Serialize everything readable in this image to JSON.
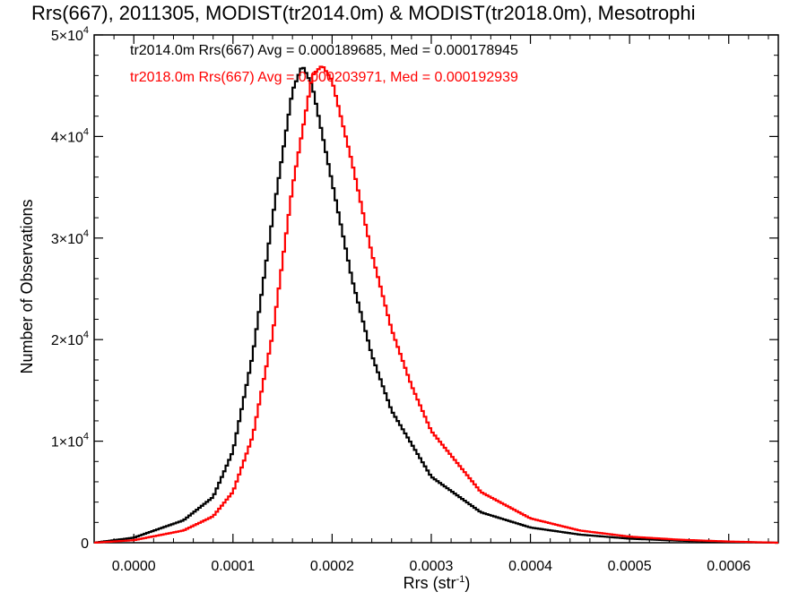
{
  "chart_data": {
    "type": "line",
    "title": "Rrs(667), 2011305, MODIST(tr2014.0m) & MODIST(tr2018.0m), Mesotrophi",
    "xlabel_main": "Rrs (str",
    "xlabel_exp": "-1",
    "xlabel_tail": ")",
    "ylabel": "Number of Observations",
    "xlim": [
      -4e-05,
      0.00065
    ],
    "ylim": [
      0,
      50000
    ],
    "x_ticks": [
      0.0,
      0.0001,
      0.0002,
      0.0003,
      0.0004,
      0.0005,
      0.0006
    ],
    "x_tick_labels": [
      "0.0000",
      "0.0001",
      "0.0002",
      "0.0003",
      "0.0004",
      "0.0005",
      "0.0006"
    ],
    "y_ticks": [
      {
        "value": 0,
        "mant": "0",
        "exp": ""
      },
      {
        "value": 10000,
        "mant": "1×10",
        "exp": "4"
      },
      {
        "value": 20000,
        "mant": "2×10",
        "exp": "4"
      },
      {
        "value": 30000,
        "mant": "3×10",
        "exp": "4"
      },
      {
        "value": 40000,
        "mant": "4×10",
        "exp": "4"
      },
      {
        "value": 50000,
        "mant": "5×10",
        "exp": "4"
      }
    ],
    "series": [
      {
        "name": "tr2014.0m",
        "color": "#000000",
        "annotation": "tr2014.0m Rrs(667) Avg = 0.000189685, Med = 0.000178945",
        "x": [
          -4e-05,
          0.0,
          5e-05,
          8e-05,
          0.0001,
          0.00012,
          0.00014,
          0.00016,
          0.00017,
          0.00018,
          0.0002,
          0.00022,
          0.00024,
          0.00026,
          0.0003,
          0.00035,
          0.0004,
          0.00045,
          0.0005,
          0.00055,
          0.0006,
          0.00065
        ],
        "y": [
          0,
          500,
          2200,
          4500,
          9000,
          18500,
          32000,
          44500,
          47000,
          45000,
          35500,
          26000,
          18500,
          13000,
          6500,
          3000,
          1500,
          800,
          400,
          200,
          80,
          0
        ]
      },
      {
        "name": "tr2018.0m",
        "color": "#ff0000",
        "annotation": "tr2018.0m Rrs(667) Avg = 0.000203971, Med = 0.000192939",
        "x": [
          -4e-05,
          0.0,
          5e-05,
          8e-05,
          0.0001,
          0.00012,
          0.00014,
          0.00016,
          0.00018,
          0.00019,
          0.0002,
          0.00022,
          0.00024,
          0.00026,
          0.00028,
          0.0003,
          0.00035,
          0.0004,
          0.00045,
          0.0005,
          0.00055,
          0.0006,
          0.00065
        ],
        "y": [
          0,
          250,
          1200,
          2600,
          5000,
          10500,
          20500,
          35000,
          46000,
          47000,
          45500,
          37500,
          28500,
          21000,
          15500,
          11000,
          5000,
          2400,
          1200,
          600,
          300,
          120,
          0
        ]
      }
    ]
  }
}
